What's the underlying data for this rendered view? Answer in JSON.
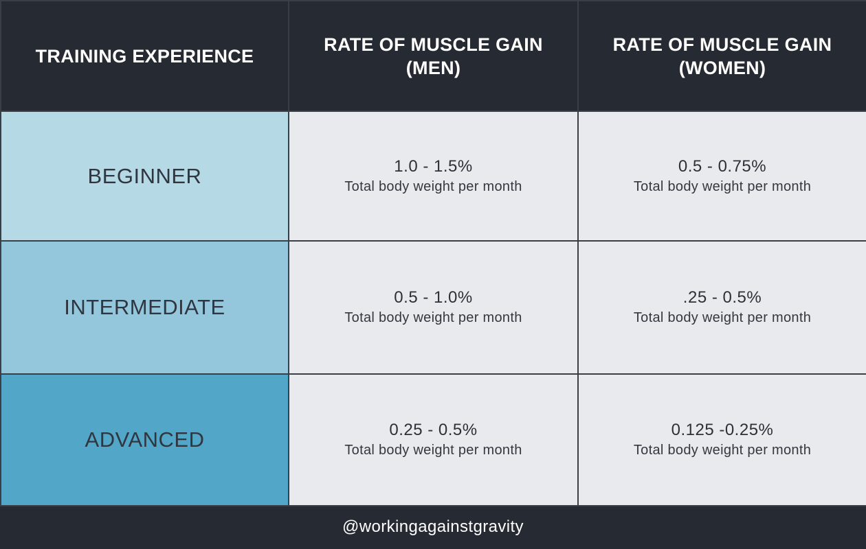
{
  "table": {
    "headers": [
      "TRAINING EXPERIENCE",
      "RATE OF MUSCLE GAIN (MEN)",
      "RATE OF MUSCLE GAIN (WOMEN)"
    ],
    "rows": [
      {
        "level": "BEGINNER",
        "men": {
          "range": "1.0 - 1.5%",
          "note": "Total body weight per month"
        },
        "women": {
          "range": "0.5 - 0.75%",
          "note": "Total body weight per month"
        }
      },
      {
        "level": "INTERMEDIATE",
        "men": {
          "range": "0.5 - 1.0%",
          "note": "Total body weight per month"
        },
        "women": {
          "range": ".25 - 0.5%",
          "note": "Total body weight per month"
        }
      },
      {
        "level": "ADVANCED",
        "men": {
          "range": "0.25 - 0.5%",
          "note": "Total body weight per month"
        },
        "women": {
          "range": "0.125 -0.25%",
          "note": "Total body weight per month"
        }
      }
    ]
  },
  "footer": {
    "handle": "@workingagainstgravity"
  },
  "colors": {
    "header_bg": "#262a32",
    "beginner_bg": "#b5d9e5",
    "intermediate_bg": "#94c7dc",
    "advanced_bg": "#52a7c8",
    "value_bg": "#e9eaed"
  }
}
